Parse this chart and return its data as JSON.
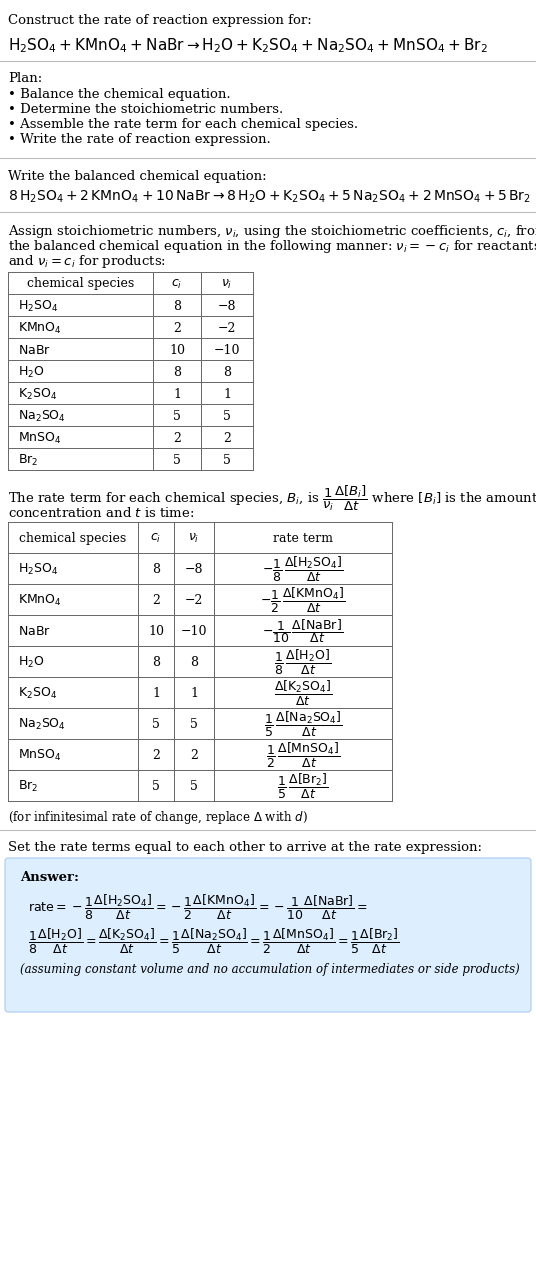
{
  "bg_color": "#ffffff",
  "text_color": "#000000",
  "title_line1": "Construct the rate of reaction expression for:",
  "plan_header": "Plan:",
  "plan_items": [
    "• Balance the chemical equation.",
    "• Determine the stoichiometric numbers.",
    "• Assemble the rate term for each chemical species.",
    "• Write the rate of reaction expression."
  ],
  "balanced_header": "Write the balanced chemical equation:",
  "table1_rows": [
    [
      "H₂SO₄",
      "8",
      "−8"
    ],
    [
      "KMnO₄",
      "2",
      "−2"
    ],
    [
      "NaBr",
      "10",
      "−10"
    ],
    [
      "H₂O",
      "8",
      "8"
    ],
    [
      "K₂SO₄",
      "1",
      "1"
    ],
    [
      "Na₂SO₄",
      "5",
      "5"
    ],
    [
      "MnSO₄",
      "2",
      "2"
    ],
    [
      "Br₂",
      "5",
      "5"
    ]
  ],
  "table1_species_math": [
    "H_2SO_4",
    "KMnO_4",
    "NaBr",
    "H_2O",
    "K_2SO_4",
    "Na_2SO_4",
    "MnSO_4",
    "Br_2"
  ],
  "table2_species_math": [
    "H_2SO_4",
    "KMnO_4",
    "NaBr",
    "H_2O",
    "K_2SO_4",
    "Na_2SO_4",
    "MnSO_4",
    "Br_2"
  ],
  "table2_rows_ci_nu": [
    [
      "8",
      "−8"
    ],
    [
      "2",
      "−2"
    ],
    [
      "10",
      "−10"
    ],
    [
      "8",
      "8"
    ],
    [
      "1",
      "1"
    ],
    [
      "5",
      "5"
    ],
    [
      "2",
      "2"
    ],
    [
      "5",
      "5"
    ]
  ],
  "infinitesimal_note": "(for infinitesimal rate of change, replace Δ with d)",
  "set_equal_text": "Set the rate terms equal to each other to arrive at the rate expression:",
  "answer_box_color": "#ddeeff",
  "answer_label": "Answer:",
  "footnote": "(assuming constant volume and no accumulation of intermediates or side products)"
}
